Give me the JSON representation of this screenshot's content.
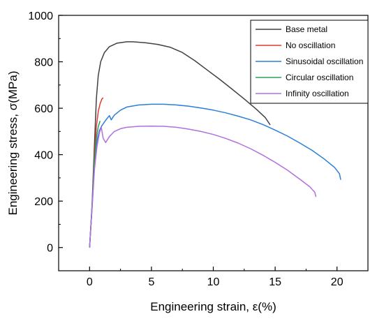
{
  "chart_data": {
    "type": "line",
    "title": "",
    "xlabel": "Engineering strain, ε(%)",
    "ylabel": "Engineering stress, σ(MPa)",
    "xlim": [
      -2.5,
      22.5
    ],
    "ylim": [
      -100,
      1000
    ],
    "xticks": [
      0,
      5,
      10,
      15,
      20
    ],
    "yticks": [
      0,
      200,
      400,
      600,
      800,
      1000
    ],
    "grid": false,
    "legend_position": "top-right",
    "series": [
      {
        "name": "Base metal",
        "color": "#404040",
        "points": [
          [
            0,
            0
          ],
          [
            0.2,
            180
          ],
          [
            0.4,
            450
          ],
          [
            0.55,
            640
          ],
          [
            0.7,
            740
          ],
          [
            0.9,
            800
          ],
          [
            1.2,
            840
          ],
          [
            1.6,
            865
          ],
          [
            2.2,
            880
          ],
          [
            3.0,
            886
          ],
          [
            3.5,
            886
          ],
          [
            4.5,
            882
          ],
          [
            5.5,
            875
          ],
          [
            6.5,
            863
          ],
          [
            7.5,
            840
          ],
          [
            8.5,
            805
          ],
          [
            9.5,
            765
          ],
          [
            10.5,
            725
          ],
          [
            11.5,
            683
          ],
          [
            12.5,
            640
          ],
          [
            13.5,
            595
          ],
          [
            14.2,
            560
          ],
          [
            14.6,
            528
          ]
        ]
      },
      {
        "name": "No oscillation",
        "color": "#e03c31",
        "points": [
          [
            0,
            0
          ],
          [
            0.2,
            170
          ],
          [
            0.4,
            400
          ],
          [
            0.55,
            520
          ],
          [
            0.7,
            585
          ],
          [
            0.85,
            620
          ],
          [
            1.0,
            640
          ],
          [
            1.1,
            645
          ]
        ]
      },
      {
        "name": "Sinusoidal oscillation",
        "color": "#2a7fd6",
        "points": [
          [
            0,
            0
          ],
          [
            0.2,
            170
          ],
          [
            0.4,
            370
          ],
          [
            0.6,
            460
          ],
          [
            0.8,
            505
          ],
          [
            1.0,
            525
          ],
          [
            1.3,
            548
          ],
          [
            1.6,
            568
          ],
          [
            1.75,
            550
          ],
          [
            2.0,
            570
          ],
          [
            2.5,
            592
          ],
          [
            3.0,
            605
          ],
          [
            4.0,
            614
          ],
          [
            5.0,
            617
          ],
          [
            6.0,
            617
          ],
          [
            7.0,
            614
          ],
          [
            8.0,
            609
          ],
          [
            9.0,
            601
          ],
          [
            10.0,
            592
          ],
          [
            11.0,
            580
          ],
          [
            12.0,
            566
          ],
          [
            13.0,
            550
          ],
          [
            14.0,
            530
          ],
          [
            15.0,
            506
          ],
          [
            16.0,
            480
          ],
          [
            17.0,
            450
          ],
          [
            18.0,
            418
          ],
          [
            19.0,
            380
          ],
          [
            19.8,
            345
          ],
          [
            20.2,
            318
          ],
          [
            20.3,
            292
          ]
        ]
      },
      {
        "name": "Circular oscillation",
        "color": "#2ca05a",
        "points": [
          [
            0,
            0
          ],
          [
            0.2,
            175
          ],
          [
            0.4,
            380
          ],
          [
            0.55,
            470
          ],
          [
            0.7,
            520
          ],
          [
            0.85,
            545
          ]
        ]
      },
      {
        "name": "Infinity oscillation",
        "color": "#b070e0",
        "points": [
          [
            0,
            0
          ],
          [
            0.2,
            165
          ],
          [
            0.4,
            340
          ],
          [
            0.6,
            435
          ],
          [
            0.8,
            495
          ],
          [
            0.95,
            518
          ],
          [
            1.1,
            470
          ],
          [
            1.3,
            452
          ],
          [
            1.6,
            478
          ],
          [
            2.0,
            500
          ],
          [
            2.5,
            512
          ],
          [
            3.0,
            518
          ],
          [
            4.0,
            522
          ],
          [
            5.0,
            523
          ],
          [
            6.0,
            522
          ],
          [
            7.0,
            518
          ],
          [
            8.0,
            510
          ],
          [
            9.0,
            500
          ],
          [
            10.0,
            487
          ],
          [
            11.0,
            470
          ],
          [
            12.0,
            450
          ],
          [
            13.0,
            426
          ],
          [
            14.0,
            398
          ],
          [
            15.0,
            367
          ],
          [
            16.0,
            333
          ],
          [
            17.0,
            294
          ],
          [
            17.8,
            262
          ],
          [
            18.2,
            238
          ],
          [
            18.3,
            218
          ]
        ]
      }
    ]
  }
}
